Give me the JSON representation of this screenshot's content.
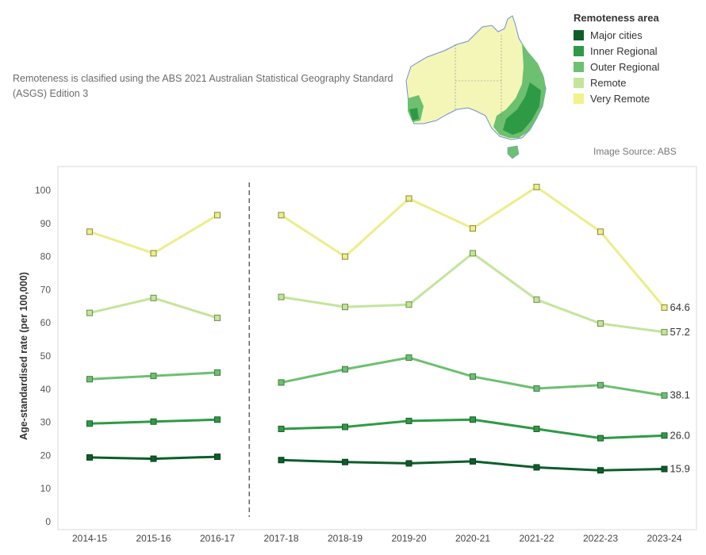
{
  "note": "Remoteness is clasified using the ABS 2021 Australian Statistical Geography Standard (ASGS) Edition 3",
  "legend": {
    "title": "Remoteness area",
    "items": [
      {
        "label": "Major cities",
        "color": "#0b5e2a"
      },
      {
        "label": "Inner Regional",
        "color": "#2e9a45"
      },
      {
        "label": "Outer Regional",
        "color": "#6cc070"
      },
      {
        "label": "Remote",
        "color": "#c3e59a"
      },
      {
        "label": "Very Remote",
        "color": "#f2f28a"
      }
    ]
  },
  "image_source": "Image Source: ABS",
  "chart_data": {
    "type": "line",
    "ylabel": "Age-standardised rate (per 100,000)",
    "xlabel": "",
    "ylim": [
      0,
      100
    ],
    "yticks": [
      0,
      10,
      20,
      30,
      40,
      50,
      60,
      70,
      80,
      90,
      100
    ],
    "categories": [
      "2014-15",
      "2015-16",
      "2016-17",
      "2017-18",
      "2018-19",
      "2019-20",
      "2020-21",
      "2021-22",
      "2022-23",
      "2023-24"
    ],
    "break_after": "2016-17",
    "series": [
      {
        "name": "Very Remote",
        "color": "#f2f28a",
        "values": [
          87.5,
          81.0,
          92.5,
          92.5,
          80.0,
          97.5,
          88.5,
          101.0,
          87.5,
          64.6
        ],
        "end_label": "64.6"
      },
      {
        "name": "Remote",
        "color": "#c3e59a",
        "values": [
          63.0,
          67.5,
          61.5,
          67.8,
          64.8,
          65.5,
          81.0,
          67.0,
          59.8,
          57.2
        ],
        "end_label": "57.2"
      },
      {
        "name": "Outer Regional",
        "color": "#6cc070",
        "values": [
          43.0,
          44.0,
          45.0,
          42.0,
          46.0,
          49.5,
          43.8,
          40.2,
          41.2,
          38.1
        ],
        "end_label": "38.1"
      },
      {
        "name": "Inner Regional",
        "color": "#2e9a45",
        "values": [
          29.6,
          30.2,
          30.8,
          28.0,
          28.6,
          30.4,
          30.8,
          28.0,
          25.2,
          26.0
        ],
        "end_label": "26.0"
      },
      {
        "name": "Major cities",
        "color": "#0b5e2a",
        "values": [
          19.4,
          19.0,
          19.6,
          18.6,
          18.0,
          17.6,
          18.2,
          16.4,
          15.5,
          15.9
        ],
        "end_label": "15.9"
      }
    ]
  }
}
